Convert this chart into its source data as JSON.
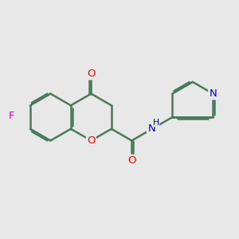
{
  "background_color": "#e8e8e8",
  "bond_color": "#4a7a5a",
  "bond_width": 1.8,
  "atom_colors": {
    "O": "#ff0000",
    "N": "#0000cc",
    "F": "#cc00cc",
    "C": "#000000"
  },
  "font_size": 9.5,
  "fig_size": [
    3.0,
    3.0
  ],
  "dpi": 100
}
